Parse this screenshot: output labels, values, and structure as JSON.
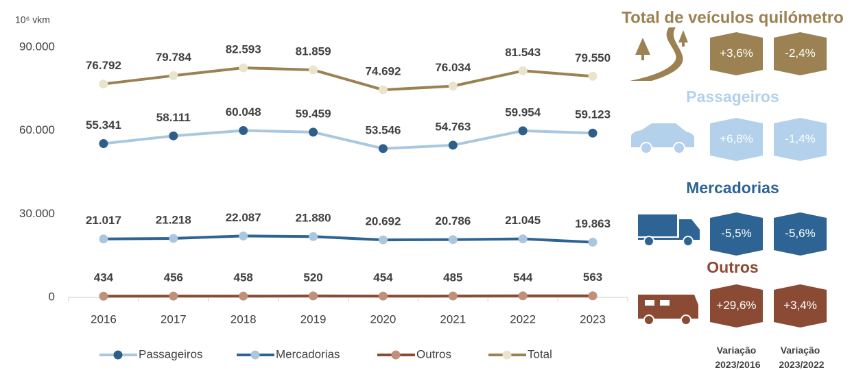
{
  "chart_data": {
    "type": "line",
    "y_label": "10⁶ vkm",
    "categories": [
      "2016",
      "2017",
      "2018",
      "2019",
      "2020",
      "2021",
      "2022",
      "2023"
    ],
    "ylim": [
      0,
      90000
    ],
    "yticks": [
      0,
      {
        "value": 30000,
        "label": "30.000"
      },
      {
        "value": 60000,
        "label": "60.000"
      },
      {
        "value": 90000,
        "label": "90.000"
      }
    ],
    "grid": false,
    "legend": "bottom",
    "series": [
      {
        "name": "Passageiros",
        "color": "#a9c8e0",
        "marker_color": "#2e5f8a",
        "values": [
          55341,
          58111,
          60048,
          59459,
          53546,
          54763,
          59954,
          59123
        ],
        "value_labels": [
          "55.341",
          "58.111",
          "60.048",
          "59.459",
          "53.546",
          "54.763",
          "59.954",
          "59.123"
        ]
      },
      {
        "name": "Mercadorias",
        "color": "#2e6494",
        "marker_color": "#a9c8e0",
        "values": [
          21017,
          21218,
          22087,
          21880,
          20692,
          20786,
          21045,
          19863
        ],
        "value_labels": [
          "21.017",
          "21.218",
          "22.087",
          "21.880",
          "20.692",
          "20.786",
          "21.045",
          "19.863"
        ]
      },
      {
        "name": "Outros",
        "color": "#8b4a33",
        "marker_color": "#c0917a",
        "values": [
          434,
          456,
          458,
          520,
          454,
          485,
          544,
          563
        ]
      },
      {
        "name": "Total",
        "color": "#9c8152",
        "marker_color": "#e9e4cc",
        "values": [
          76792,
          79784,
          82593,
          81859,
          74692,
          76034,
          81543,
          79550
        ],
        "value_labels": [
          "76.792",
          "79.784",
          "82.593",
          "81.859",
          "74.692",
          "76.034",
          "81.543",
          "79.550"
        ]
      }
    ]
  },
  "variations": {
    "columns": [
      "Variação 2023/2016",
      "Variação 2023/2022"
    ],
    "groups": [
      {
        "title": "Total de veículos quilómetro",
        "color": "#9c8152",
        "values": [
          3.6,
          -2.4
        ],
        "value_labels": [
          "+3,6%",
          "-2,4%"
        ]
      },
      {
        "title": "Passageiros",
        "color": "#b3d1ea",
        "values": [
          6.8,
          -1.4
        ],
        "value_labels": [
          "+6,8%",
          "-1,4%"
        ]
      },
      {
        "title": "Mercadorias",
        "color": "#2e6494",
        "values": [
          -5.5,
          -5.6
        ],
        "value_labels": [
          "-5,5%",
          "-5,6%"
        ]
      },
      {
        "title": "Outros",
        "color": "#8b4a33",
        "values": [
          29.6,
          3.4
        ],
        "value_labels": [
          "+29,6%",
          "+3,4%"
        ]
      }
    ]
  }
}
